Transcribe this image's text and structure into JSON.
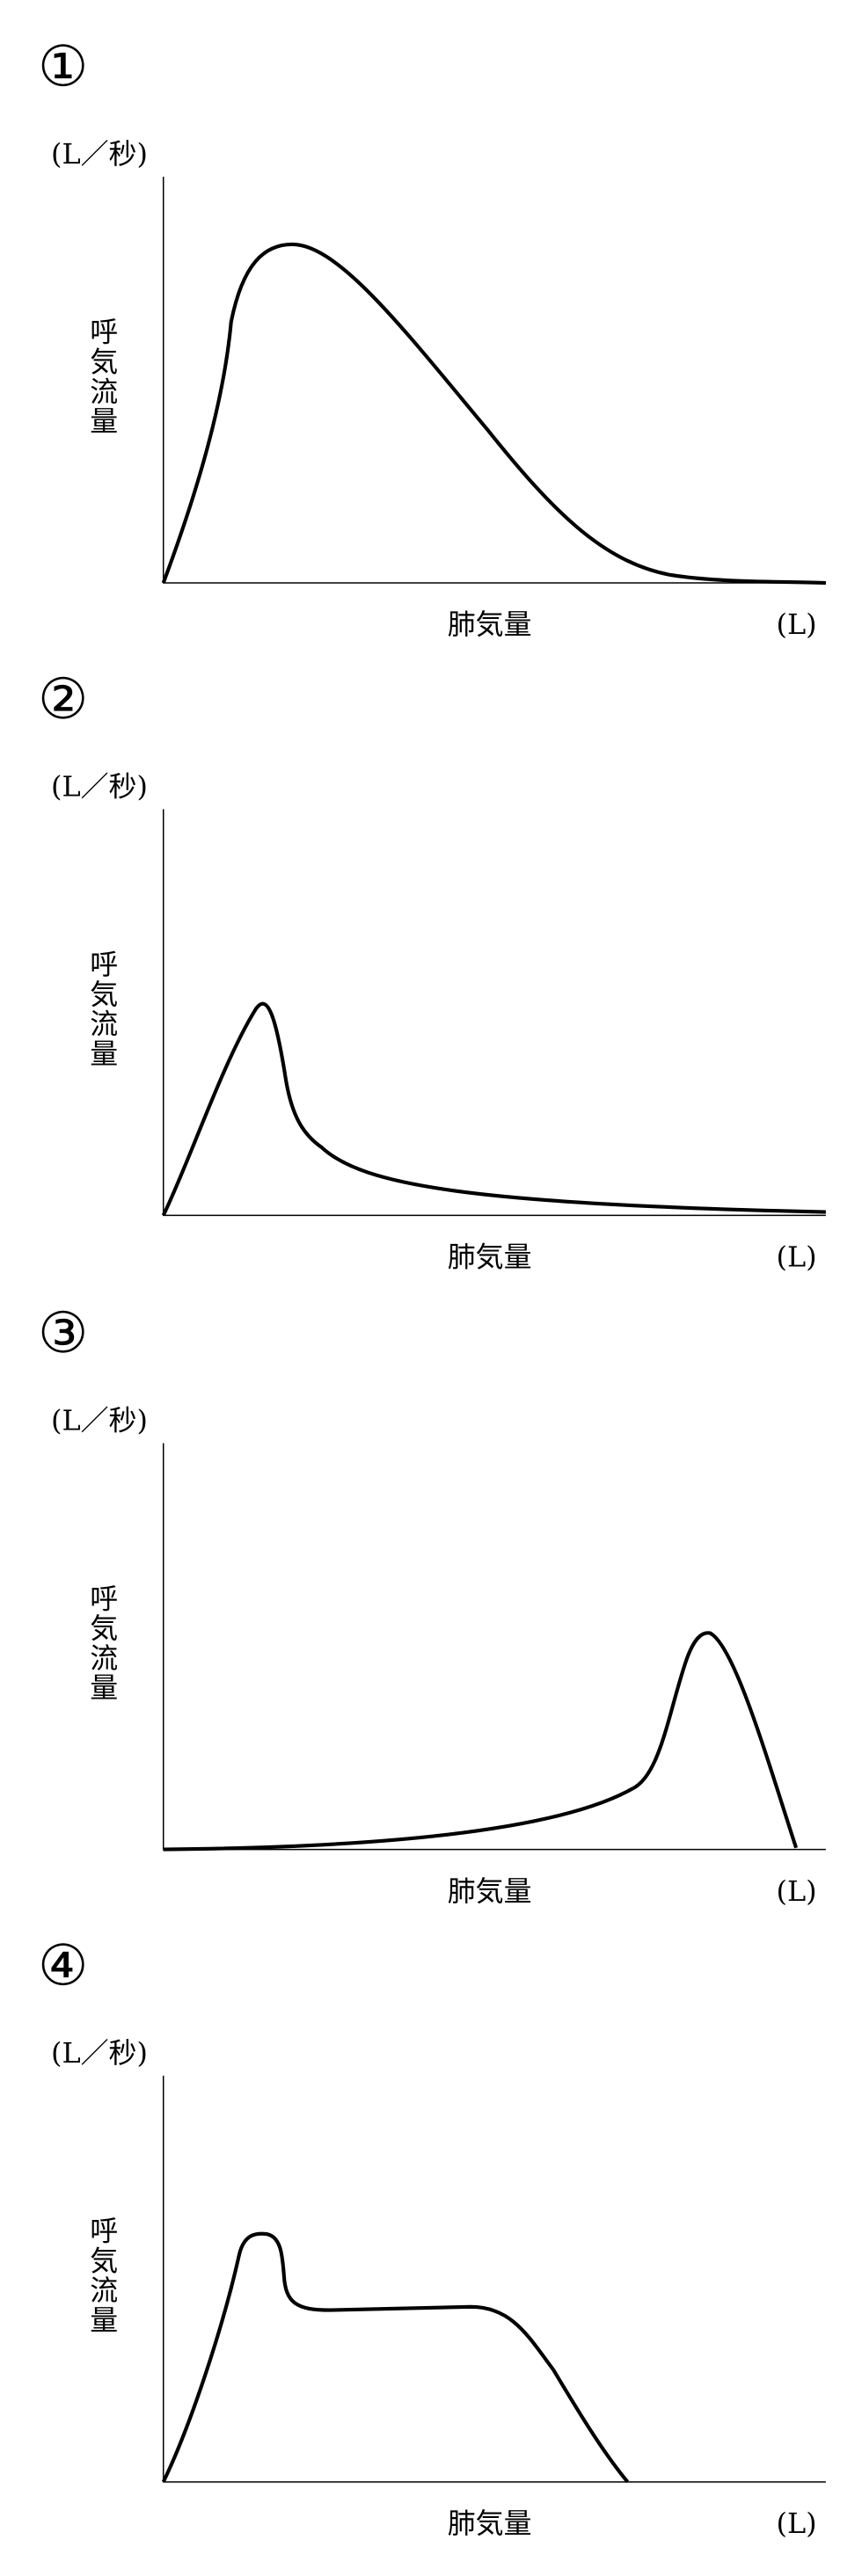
{
  "panels": [
    {
      "number": "①",
      "y_unit": "(L／秒)",
      "y_label": "呼気流量",
      "x_label": "肺気量",
      "x_unit": "(L)"
    },
    {
      "number": "②",
      "y_unit": "(L／秒)",
      "y_label": "呼気流量",
      "x_label": "肺気量",
      "x_unit": "(L)"
    },
    {
      "number": "③",
      "y_unit": "(L／秒)",
      "y_label": "呼気流量",
      "x_label": "肺気量",
      "x_unit": "(L)"
    },
    {
      "number": "④",
      "y_unit": "(L／秒)",
      "y_label": "呼気流量",
      "x_label": "肺気量",
      "x_unit": "(L)"
    }
  ]
}
